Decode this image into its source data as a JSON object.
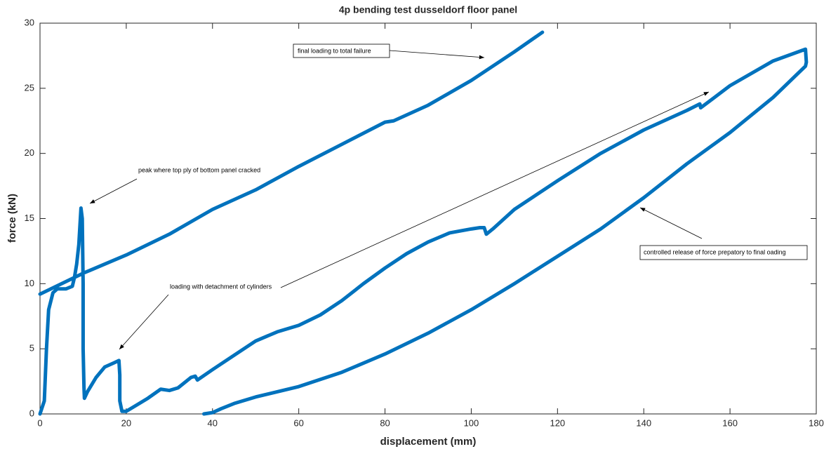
{
  "chart_data": {
    "type": "line",
    "title": "4p bending test dusseldorf floor panel",
    "x_label": "displacement (mm)",
    "y_label": "force (kN)",
    "color": "#0072bd",
    "x": [
      0,
      0.5,
      1,
      1.5,
      2,
      3,
      4,
      6,
      7.5,
      8,
      8.5,
      9,
      9.5,
      9.8,
      10,
      10,
      10.2,
      10.3,
      11,
      13,
      15,
      17,
      18.3,
      18.5,
      18.5,
      19,
      20,
      22,
      25,
      28,
      30,
      32,
      35,
      36,
      36.5,
      40,
      45,
      50,
      55,
      60,
      65,
      70,
      75,
      80,
      85,
      90,
      95,
      100,
      102,
      103,
      103.5,
      105,
      110,
      120,
      130,
      140,
      150,
      153,
      153.2,
      160,
      170,
      177.5,
      177.7,
      177.5,
      170,
      160,
      150,
      140,
      130,
      120,
      110,
      100,
      90,
      80,
      70,
      60,
      50,
      45,
      42,
      40,
      38,
      null,
      0,
      10,
      20,
      30,
      40,
      50,
      60,
      70,
      80,
      82,
      90,
      100,
      110,
      116.5
    ],
    "values": [
      0,
      0.5,
      1,
      5,
      8,
      9.3,
      9.6,
      9.6,
      9.8,
      10.5,
      11.5,
      13,
      15.8,
      15,
      10,
      5,
      2,
      1.2,
      1.7,
      2.8,
      3.6,
      3.9,
      4.1,
      3,
      1,
      0.2,
      0.2,
      0.6,
      1.2,
      1.9,
      1.8,
      2,
      2.8,
      2.9,
      2.6,
      3.4,
      4.5,
      5.6,
      6.3,
      6.8,
      7.6,
      8.7,
      10,
      11.2,
      12.3,
      13.2,
      13.9,
      14.2,
      14.3,
      14.3,
      13.8,
      14.2,
      15.7,
      17.9,
      20,
      21.8,
      23.3,
      23.8,
      23.5,
      25.2,
      27.1,
      28,
      27,
      26.7,
      24.3,
      21.6,
      19.2,
      16.6,
      14.2,
      12.1,
      10,
      8,
      6.2,
      4.6,
      3.2,
      2.1,
      1.3,
      0.8,
      0.4,
      0.1,
      0,
      null,
      9.2,
      10.8,
      12.2,
      13.8,
      15.7,
      17.2,
      19,
      20.7,
      22.4,
      22.5,
      23.7,
      25.6,
      27.8,
      29.3
    ],
    "xlim": [
      0,
      180
    ],
    "xticks": [
      0,
      20,
      40,
      60,
      80,
      100,
      120,
      140,
      160,
      180
    ],
    "ylim": [
      0,
      30
    ],
    "yticks": [
      0,
      5,
      10,
      15,
      20,
      25,
      30
    ],
    "annotations": [
      "final loading to total failure",
      "peak where top ply of bottom panel cracked",
      "loading with detachment of cylinders",
      "controlled release of force prepatory to final oading"
    ]
  }
}
